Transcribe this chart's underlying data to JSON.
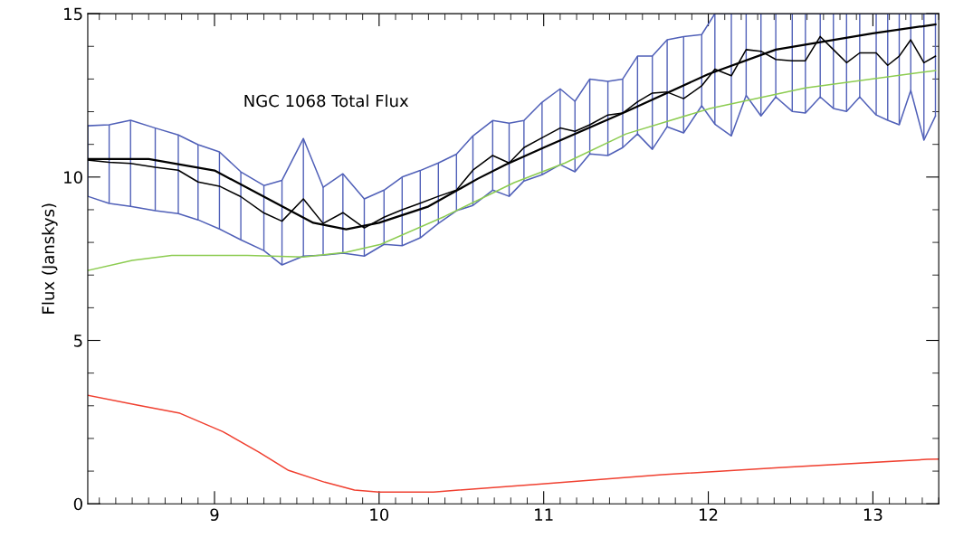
{
  "chart_data": {
    "type": "line",
    "title": "NGC 1068 Total Flux",
    "ylabel": "Flux (Janskys)",
    "xlim": [
      8.23,
      13.4
    ],
    "xticks": [
      9,
      10,
      11,
      12,
      13
    ],
    "ylim": [
      0,
      15
    ],
    "yticks": [
      0,
      5,
      10,
      15
    ],
    "grid": false,
    "legend": false,
    "marker": "none",
    "line_style": "solid",
    "x": [
      8.23,
      8.36,
      8.49,
      8.64,
      8.78,
      8.9,
      9.03,
      9.16,
      9.3,
      9.41,
      9.54,
      9.66,
      9.78,
      9.91,
      10.03,
      10.14,
      10.25,
      10.36,
      10.47,
      10.57,
      10.69,
      10.79,
      10.88,
      10.99,
      11.1,
      11.19,
      11.28,
      11.39,
      11.48,
      11.57,
      11.66,
      11.75,
      11.85,
      11.96,
      12.04,
      12.14,
      12.23,
      12.32,
      12.41,
      12.51,
      12.59,
      12.68,
      12.76,
      12.84,
      12.92,
      13.02,
      13.09,
      13.16,
      13.23,
      13.31,
      13.38
    ],
    "series": [
      {
        "color": "#5060b8",
        "values": [
          9.41,
          9.19,
          9.1,
          8.97,
          8.88,
          8.69,
          8.41,
          8.08,
          7.75,
          7.31,
          7.58,
          7.61,
          7.67,
          7.58,
          7.94,
          7.9,
          8.14,
          8.58,
          8.97,
          9.13,
          9.6,
          9.41,
          9.88,
          10.07,
          10.38,
          10.16,
          10.71,
          10.66,
          10.9,
          11.32,
          10.85,
          11.54,
          11.35,
          12.18,
          11.62,
          11.26,
          12.5,
          11.87,
          12.45,
          12.01,
          11.96,
          12.45,
          12.1,
          12.01,
          12.45,
          11.9,
          11.74,
          11.6,
          12.65,
          11.13,
          11.87
        ],
        "errors": [
          [
            9.41,
            11.57
          ],
          [
            9.19,
            11.6
          ],
          [
            9.1,
            11.74
          ],
          [
            8.97,
            11.5
          ],
          [
            8.88,
            11.29
          ],
          [
            8.69,
            10.99
          ],
          [
            8.41,
            10.77
          ],
          [
            8.08,
            10.16
          ],
          [
            7.75,
            9.74
          ],
          [
            7.31,
            9.9
          ],
          [
            7.58,
            11.18
          ],
          [
            7.61,
            9.69
          ],
          [
            7.67,
            10.1
          ],
          [
            7.58,
            9.33
          ],
          [
            7.94,
            9.6
          ],
          [
            7.9,
            10.0
          ],
          [
            8.14,
            10.2
          ],
          [
            8.58,
            10.43
          ],
          [
            8.97,
            10.7
          ],
          [
            9.13,
            11.26
          ],
          [
            9.6,
            11.73
          ],
          [
            9.41,
            11.65
          ],
          [
            9.88,
            11.73
          ],
          [
            10.07,
            12.29
          ],
          [
            10.38,
            12.7
          ],
          [
            10.16,
            12.32
          ],
          [
            10.71,
            13.0
          ],
          [
            10.66,
            12.93
          ],
          [
            10.9,
            13.0
          ],
          [
            11.32,
            13.7
          ],
          [
            10.85,
            13.7
          ],
          [
            11.54,
            14.2
          ],
          [
            11.35,
            14.3
          ],
          [
            12.18,
            14.36
          ],
          [
            11.62,
            15
          ],
          [
            11.26,
            15
          ],
          [
            12.5,
            15
          ],
          [
            11.87,
            15
          ],
          [
            12.45,
            15
          ],
          [
            12.01,
            15
          ],
          [
            11.96,
            15
          ],
          [
            12.45,
            15
          ],
          [
            12.1,
            15
          ],
          [
            12.01,
            15
          ],
          [
            12.45,
            15
          ],
          [
            11.9,
            15
          ],
          [
            11.74,
            15
          ],
          [
            11.6,
            15
          ],
          [
            12.65,
            15
          ],
          [
            11.13,
            15
          ],
          [
            11.87,
            15
          ]
        ]
      },
      {
        "color": "#5060b8",
        "values": [
          11.57,
          11.6,
          11.74,
          11.5,
          11.29,
          10.99,
          10.77,
          10.16,
          9.74,
          9.9,
          11.18,
          9.69,
          10.1,
          9.33,
          9.6,
          10.0,
          10.2,
          10.43,
          10.7,
          11.26,
          11.73,
          11.65,
          11.73,
          12.29,
          12.7,
          12.32,
          13.0,
          12.93,
          13.0,
          13.7,
          13.7,
          14.2,
          14.3,
          14.36,
          15,
          15,
          15,
          15,
          15,
          15,
          15,
          15,
          15,
          15,
          15,
          15,
          15,
          15,
          15,
          15,
          15
        ]
      },
      {
        "color": "#000000",
        "values": [
          10.52,
          10.45,
          10.42,
          10.3,
          10.21,
          9.85,
          9.72,
          9.4,
          8.9,
          8.65,
          9.33,
          8.58,
          8.91,
          8.44,
          8.77,
          9.0,
          9.2,
          9.41,
          9.6,
          10.21,
          10.66,
          10.43,
          10.9,
          11.2,
          11.5,
          11.4,
          11.6,
          11.9,
          11.96,
          12.3,
          12.57,
          12.6,
          12.4,
          12.79,
          13.3,
          13.1,
          13.9,
          13.85,
          13.6,
          13.56,
          13.56,
          14.3,
          13.9,
          13.5,
          13.8,
          13.8,
          13.42,
          13.7,
          14.2,
          13.5,
          13.7
        ]
      },
      {
        "color": "#000000",
        "x": [
          8.23,
          8.6,
          9.0,
          9.3,
          9.6,
          9.8,
          10.0,
          10.3,
          10.6,
          10.77,
          11.0,
          11.5,
          12.0,
          12.41,
          13.0,
          13.38
        ],
        "values": [
          10.55,
          10.55,
          10.2,
          9.4,
          8.6,
          8.4,
          8.6,
          9.1,
          9.95,
          10.38,
          10.9,
          12.0,
          13.15,
          13.9,
          14.4,
          14.67
        ]
      },
      {
        "color": "#8ccc50",
        "x": [
          8.23,
          8.5,
          8.74,
          9.2,
          9.54,
          9.8,
          10.01,
          10.4,
          10.82,
          11.13,
          11.5,
          12.01,
          12.59,
          13.38
        ],
        "values": [
          7.14,
          7.45,
          7.6,
          7.6,
          7.55,
          7.7,
          7.94,
          8.8,
          9.83,
          10.43,
          11.32,
          12.1,
          12.73,
          13.26
        ]
      },
      {
        "color": "#f04030",
        "x": [
          8.23,
          8.53,
          8.79,
          9.05,
          9.27,
          9.45,
          9.67,
          9.85,
          10.0,
          10.33,
          10.99,
          11.72,
          12.45,
          13.33,
          13.4
        ],
        "values": [
          3.32,
          3.02,
          2.77,
          2.21,
          1.58,
          1.02,
          0.66,
          0.42,
          0.36,
          0.36,
          0.61,
          0.89,
          1.11,
          1.36,
          1.37
        ]
      }
    ]
  }
}
